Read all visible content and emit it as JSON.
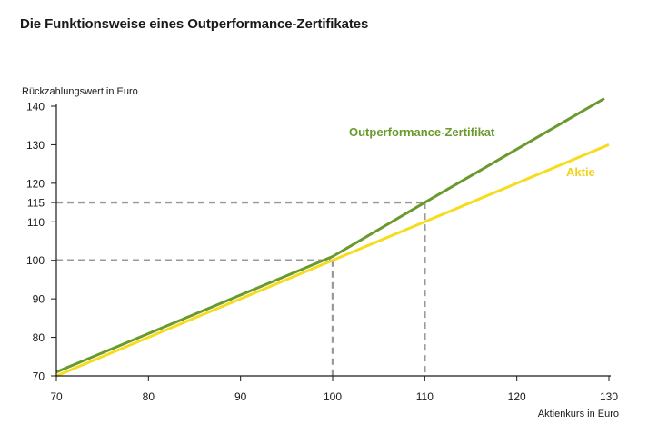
{
  "chart_data": {
    "type": "line",
    "title": "Die Funktionsweise eines Outperformance-Zertifikates",
    "xlabel": "Aktienkurs in Euro",
    "ylabel": "Rückzahlungswert in Euro",
    "xlim": [
      70,
      130
    ],
    "ylim": [
      70,
      140
    ],
    "x_ticks": [
      "70",
      "80",
      "90",
      "100",
      "110",
      "120",
      "130"
    ],
    "y_ticks": [
      "70",
      "80",
      "90",
      "100",
      "110",
      "115",
      "120",
      "130",
      "140"
    ],
    "grid": false,
    "series": [
      {
        "name": "Outperformance-Zertifikat",
        "color": "#6a9a2e",
        "points": [
          [
            70,
            71
          ],
          [
            100,
            101
          ],
          [
            110,
            115
          ],
          [
            129.5,
            142
          ]
        ]
      },
      {
        "name": "Aktie",
        "color": "#f5dc1e",
        "points": [
          [
            70,
            70
          ],
          [
            130,
            130
          ]
        ]
      }
    ],
    "reference_lines": [
      {
        "x": 100,
        "y": 100
      },
      {
        "x": 110,
        "y": 115
      }
    ],
    "reference_color": "#9a9a9a",
    "axis_color": "#1a1a1a"
  }
}
